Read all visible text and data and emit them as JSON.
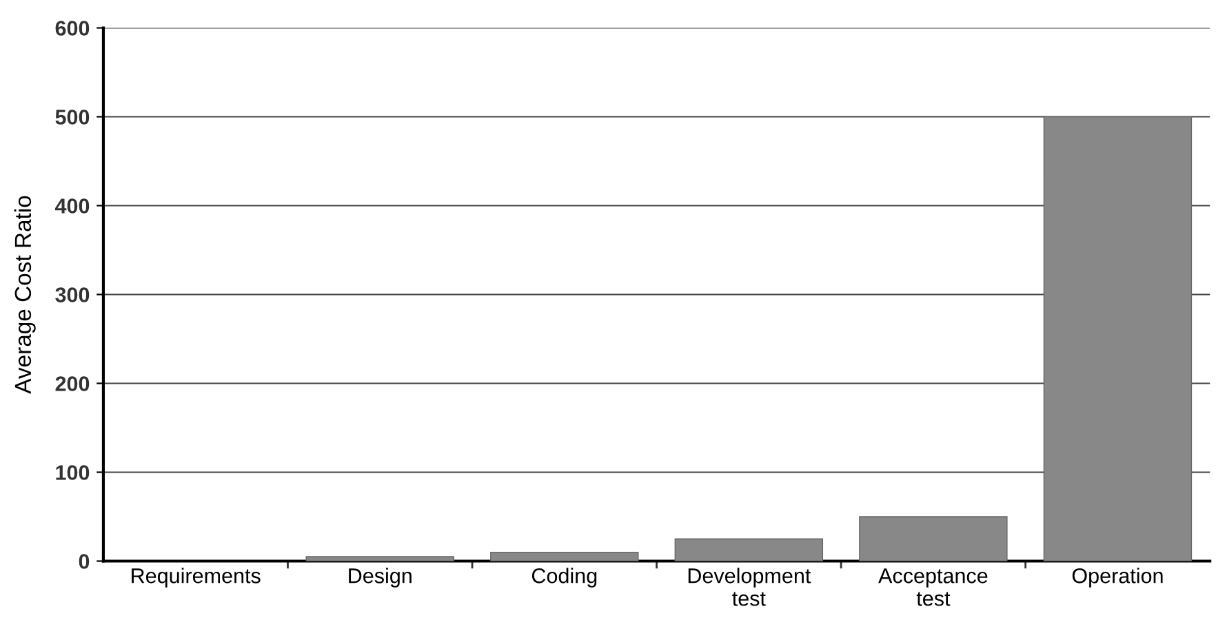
{
  "chart_data": {
    "type": "bar",
    "ylabel": "Average Cost Ratio",
    "categories": [
      "Requirements",
      "Design",
      "Coding",
      "Development\ntest",
      "Acceptance\ntest",
      "Operation"
    ],
    "values": [
      null,
      5,
      10,
      25,
      50,
      500
    ],
    "color": "#888888",
    "ylim": [
      0,
      600
    ],
    "yticks": [
      0,
      100,
      200,
      300,
      400,
      500,
      600
    ],
    "grid": "y",
    "legend": false
  }
}
